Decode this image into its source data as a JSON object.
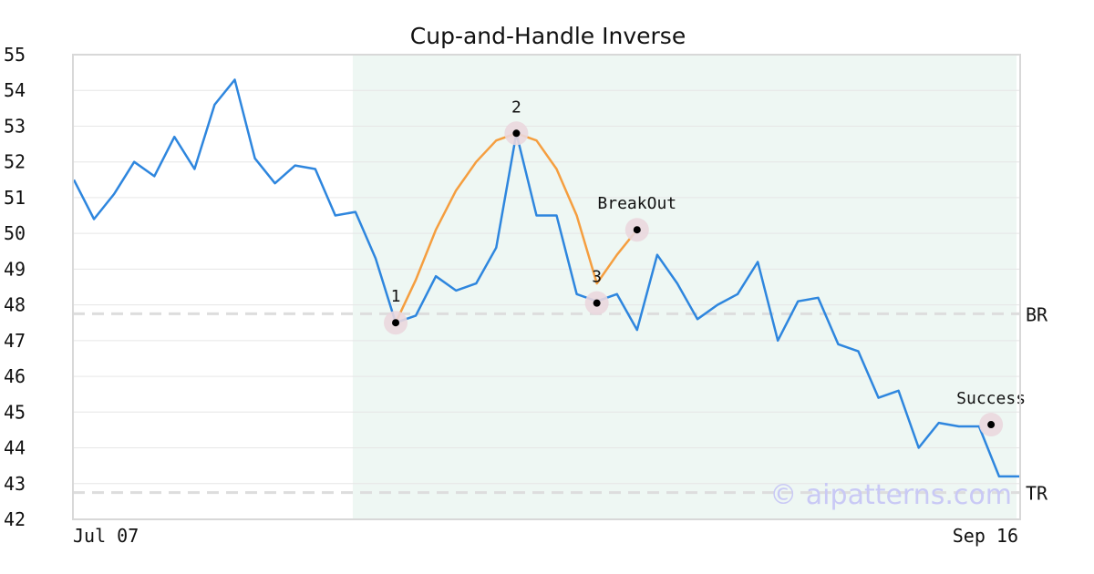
{
  "chart_data": {
    "type": "line",
    "title": "Cup-and-Handle Inverse",
    "ylim": [
      42,
      55
    ],
    "y_ticks": [
      42,
      43,
      44,
      45,
      46,
      47,
      48,
      49,
      50,
      51,
      52,
      53,
      54,
      55
    ],
    "x_labels": [
      "Jul 07",
      "Sep 16"
    ],
    "grid": "horizontal",
    "colors": {
      "price": "#2e86de",
      "pattern": "#f59e3f",
      "highlight": "#eef7f3",
      "level": "#dddddd",
      "marker_halo": "#ead7de"
    },
    "series": [
      {
        "values": [
          51.5,
          50.4,
          51.1,
          52.0,
          51.6,
          52.7,
          51.8,
          53.6,
          54.3,
          52.1,
          51.4,
          51.9,
          51.8,
          50.5,
          50.6,
          49.3,
          47.5,
          47.7,
          48.8,
          48.4,
          48.6,
          49.6,
          52.8,
          50.5,
          50.5,
          48.3,
          48.1,
          48.3,
          47.3,
          49.4,
          48.6,
          47.6,
          48.0,
          48.3,
          49.2,
          47.0,
          48.1,
          48.2,
          46.9,
          46.7,
          45.4,
          45.6,
          44.0,
          44.7,
          44.6,
          44.6,
          43.2,
          43.2
        ]
      }
    ],
    "pattern_line": {
      "x": [
        16,
        17,
        18,
        19,
        20,
        21,
        22,
        23,
        24,
        25,
        26,
        27,
        28
      ],
      "values": [
        47.5,
        48.7,
        50.1,
        51.2,
        52.0,
        52.6,
        52.8,
        52.6,
        51.8,
        50.5,
        48.6,
        49.4,
        50.1
      ]
    },
    "highlight_range": [
      14,
      47
    ],
    "levels": [
      {
        "label": "BR",
        "value": 47.75
      },
      {
        "label": "TR",
        "value": 42.75
      }
    ],
    "annotations": [
      {
        "label": "1",
        "x": 16,
        "y": 47.5
      },
      {
        "label": "2",
        "x": 22,
        "y": 52.8
      },
      {
        "label": "3",
        "x": 26,
        "y": 48.05
      },
      {
        "label": "BreakOut",
        "x": 28,
        "y": 50.1
      },
      {
        "label": "Success",
        "x": 45.6,
        "y": 44.65
      }
    ],
    "watermark": "© aipatterns.com"
  }
}
